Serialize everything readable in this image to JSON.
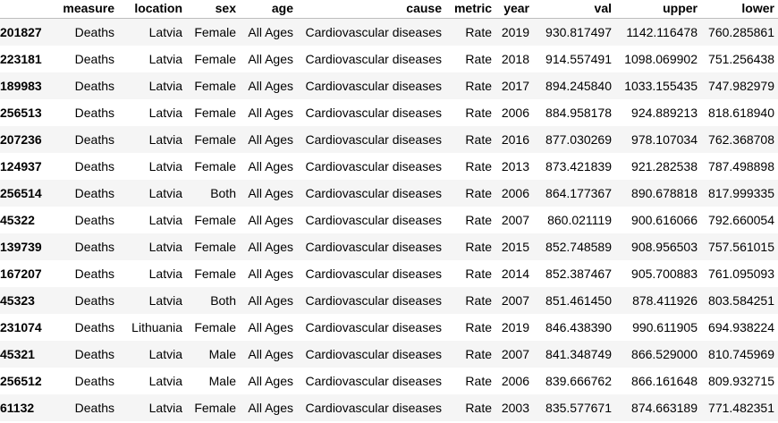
{
  "table": {
    "columns": [
      "",
      "measure",
      "location",
      "sex",
      "age",
      "cause",
      "metric",
      "year",
      "val",
      "upper",
      "lower"
    ],
    "rows": [
      [
        "201827",
        "Deaths",
        "Latvia",
        "Female",
        "All Ages",
        "Cardiovascular diseases",
        "Rate",
        "2019",
        "930.817497",
        "1142.116478",
        "760.285861"
      ],
      [
        "223181",
        "Deaths",
        "Latvia",
        "Female",
        "All Ages",
        "Cardiovascular diseases",
        "Rate",
        "2018",
        "914.557491",
        "1098.069902",
        "751.256438"
      ],
      [
        "189983",
        "Deaths",
        "Latvia",
        "Female",
        "All Ages",
        "Cardiovascular diseases",
        "Rate",
        "2017",
        "894.245840",
        "1033.155435",
        "747.982979"
      ],
      [
        "256513",
        "Deaths",
        "Latvia",
        "Female",
        "All Ages",
        "Cardiovascular diseases",
        "Rate",
        "2006",
        "884.958178",
        "924.889213",
        "818.618940"
      ],
      [
        "207236",
        "Deaths",
        "Latvia",
        "Female",
        "All Ages",
        "Cardiovascular diseases",
        "Rate",
        "2016",
        "877.030269",
        "978.107034",
        "762.368708"
      ],
      [
        "124937",
        "Deaths",
        "Latvia",
        "Female",
        "All Ages",
        "Cardiovascular diseases",
        "Rate",
        "2013",
        "873.421839",
        "921.282538",
        "787.498898"
      ],
      [
        "256514",
        "Deaths",
        "Latvia",
        "Both",
        "All Ages",
        "Cardiovascular diseases",
        "Rate",
        "2006",
        "864.177367",
        "890.678818",
        "817.999335"
      ],
      [
        "45322",
        "Deaths",
        "Latvia",
        "Female",
        "All Ages",
        "Cardiovascular diseases",
        "Rate",
        "2007",
        "860.021119",
        "900.616066",
        "792.660054"
      ],
      [
        "139739",
        "Deaths",
        "Latvia",
        "Female",
        "All Ages",
        "Cardiovascular diseases",
        "Rate",
        "2015",
        "852.748589",
        "908.956503",
        "757.561015"
      ],
      [
        "167207",
        "Deaths",
        "Latvia",
        "Female",
        "All Ages",
        "Cardiovascular diseases",
        "Rate",
        "2014",
        "852.387467",
        "905.700883",
        "761.095093"
      ],
      [
        "45323",
        "Deaths",
        "Latvia",
        "Both",
        "All Ages",
        "Cardiovascular diseases",
        "Rate",
        "2007",
        "851.461450",
        "878.411926",
        "803.584251"
      ],
      [
        "231074",
        "Deaths",
        "Lithuania",
        "Female",
        "All Ages",
        "Cardiovascular diseases",
        "Rate",
        "2019",
        "846.438390",
        "990.611905",
        "694.938224"
      ],
      [
        "45321",
        "Deaths",
        "Latvia",
        "Male",
        "All Ages",
        "Cardiovascular diseases",
        "Rate",
        "2007",
        "841.348749",
        "866.529000",
        "810.745969"
      ],
      [
        "256512",
        "Deaths",
        "Latvia",
        "Male",
        "All Ages",
        "Cardiovascular diseases",
        "Rate",
        "2006",
        "839.666762",
        "866.161648",
        "809.932715"
      ],
      [
        "61132",
        "Deaths",
        "Latvia",
        "Female",
        "All Ages",
        "Cardiovascular diseases",
        "Rate",
        "2003",
        "835.577671",
        "874.663189",
        "771.482351"
      ]
    ]
  }
}
